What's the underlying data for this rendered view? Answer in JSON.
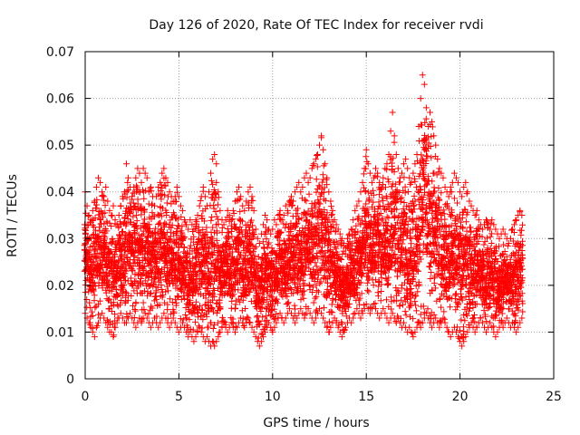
{
  "chart_data": {
    "type": "scatter",
    "title": "Day 126 of 2020, Rate Of TEC Index for receiver rvdi",
    "xlabel": "GPS time / hours",
    "ylabel": "ROTI / TECUs",
    "xlim": [
      0,
      25
    ],
    "ylim": [
      0,
      0.07
    ],
    "xticks": [
      0,
      5,
      10,
      15,
      20,
      25
    ],
    "xtick_labels": [
      "0",
      "5",
      "10",
      "15",
      "20",
      "25"
    ],
    "yticks": [
      0,
      0.01,
      0.02,
      0.03,
      0.04,
      0.05,
      0.06,
      0.07
    ],
    "ytick_labels": [
      "0",
      "0.01",
      "0.02",
      "0.03",
      "0.04",
      "0.05",
      "0.06",
      "0.07"
    ],
    "grid": true,
    "marker": "+",
    "series": [
      {
        "name": "ROTI",
        "color": "#ff0000",
        "x": [
          0.0,
          0.1,
          0.2,
          0.3,
          0.4,
          0.5,
          0.6,
          0.7,
          0.8,
          0.9,
          1.0,
          1.1,
          1.2,
          1.3,
          1.4,
          1.5,
          1.6,
          1.7,
          1.8,
          1.9,
          2.0,
          2.1,
          2.2,
          2.3,
          2.4,
          2.5,
          2.6,
          2.7,
          2.8,
          2.9,
          3.0,
          3.1,
          3.2,
          3.3,
          3.4,
          3.5,
          3.6,
          3.7,
          3.8,
          3.9,
          4.0,
          4.1,
          4.2,
          4.3,
          4.4,
          4.5,
          4.6,
          4.7,
          4.8,
          4.9,
          5.0,
          5.1,
          5.2,
          5.3,
          5.4,
          5.5,
          5.6,
          5.7,
          5.8,
          5.9,
          6.0,
          6.1,
          6.2,
          6.3,
          6.4,
          6.5,
          6.6,
          6.7,
          6.8,
          6.9,
          7.0,
          7.1,
          7.2,
          7.3,
          7.4,
          7.5,
          7.6,
          7.7,
          7.8,
          7.9,
          8.0,
          8.1,
          8.2,
          8.3,
          8.4,
          8.5,
          8.6,
          8.7,
          8.8,
          8.9,
          9.0,
          9.1,
          9.2,
          9.3,
          9.4,
          9.5,
          9.6,
          9.7,
          9.8,
          9.9,
          10.0,
          10.1,
          10.2,
          10.3,
          10.4,
          10.5,
          10.6,
          10.7,
          10.8,
          10.9,
          11.0,
          11.1,
          11.2,
          11.3,
          11.4,
          11.5,
          11.6,
          11.7,
          11.8,
          11.9,
          12.0,
          12.1,
          12.2,
          12.3,
          12.4,
          12.5,
          12.6,
          12.7,
          12.8,
          12.9,
          13.0,
          13.1,
          13.2,
          13.3,
          13.4,
          13.5,
          13.6,
          13.7,
          13.8,
          13.9,
          14.0,
          14.1,
          14.2,
          14.3,
          14.4,
          14.5,
          14.6,
          14.7,
          14.8,
          14.9,
          15.0,
          15.1,
          15.2,
          15.3,
          15.4,
          15.5,
          15.6,
          15.7,
          15.8,
          15.9,
          16.0,
          16.1,
          16.2,
          16.3,
          16.4,
          16.5,
          16.6,
          16.7,
          16.8,
          16.9,
          17.0,
          17.1,
          17.2,
          17.3,
          17.4,
          17.5,
          17.6,
          17.7,
          17.8,
          17.9,
          18.0,
          18.1,
          18.2,
          18.3,
          18.4,
          18.5,
          18.6,
          18.7,
          18.8,
          18.9,
          19.0,
          19.1,
          19.2,
          19.3,
          19.4,
          19.5,
          19.6,
          19.7,
          19.8,
          19.9,
          20.0,
          20.1,
          20.2,
          20.3,
          20.4,
          20.5,
          20.6,
          20.7,
          20.8,
          20.9,
          21.0,
          21.1,
          21.2,
          21.3,
          21.4,
          21.5,
          21.6,
          21.7,
          21.8,
          21.9,
          22.0,
          22.1,
          22.2,
          22.3,
          22.4,
          22.5,
          22.6,
          22.7,
          22.8,
          22.9,
          23.0,
          23.1,
          23.2,
          23.3,
          23.4,
          23.5,
          23.6,
          23.7,
          23.8,
          23.9,
          24.0
        ],
        "y_min": [
          0.014,
          0.013,
          0.012,
          0.011,
          0.01,
          0.009,
          0.011,
          0.012,
          0.013,
          0.014,
          0.013,
          0.012,
          0.011,
          0.01,
          0.01,
          0.009,
          0.011,
          0.012,
          0.013,
          0.014,
          0.013,
          0.012,
          0.012,
          0.013,
          0.014,
          0.013,
          0.012,
          0.011,
          0.012,
          0.013,
          0.012,
          0.013,
          0.014,
          0.013,
          0.012,
          0.011,
          0.012,
          0.013,
          0.012,
          0.011,
          0.012,
          0.013,
          0.014,
          0.013,
          0.012,
          0.011,
          0.012,
          0.013,
          0.012,
          0.011,
          0.01,
          0.011,
          0.012,
          0.011,
          0.01,
          0.009,
          0.01,
          0.009,
          0.008,
          0.009,
          0.01,
          0.011,
          0.01,
          0.009,
          0.008,
          0.009,
          0.008,
          0.007,
          0.008,
          0.007,
          0.008,
          0.009,
          0.01,
          0.011,
          0.012,
          0.011,
          0.01,
          0.011,
          0.012,
          0.011,
          0.01,
          0.011,
          0.012,
          0.013,
          0.012,
          0.011,
          0.012,
          0.013,
          0.012,
          0.011,
          0.01,
          0.009,
          0.008,
          0.007,
          0.008,
          0.009,
          0.01,
          0.011,
          0.012,
          0.011,
          0.01,
          0.011,
          0.012,
          0.013,
          0.014,
          0.013,
          0.012,
          0.013,
          0.014,
          0.015,
          0.014,
          0.013,
          0.012,
          0.013,
          0.014,
          0.015,
          0.014,
          0.013,
          0.014,
          0.015,
          0.014,
          0.013,
          0.012,
          0.013,
          0.014,
          0.015,
          0.014,
          0.013,
          0.012,
          0.011,
          0.01,
          0.011,
          0.012,
          0.013,
          0.012,
          0.011,
          0.01,
          0.009,
          0.01,
          0.011,
          0.012,
          0.013,
          0.012,
          0.013,
          0.014,
          0.015,
          0.014,
          0.013,
          0.014,
          0.015,
          0.016,
          0.015,
          0.014,
          0.015,
          0.016,
          0.015,
          0.014,
          0.013,
          0.014,
          0.015,
          0.014,
          0.013,
          0.012,
          0.013,
          0.014,
          0.013,
          0.012,
          0.013,
          0.012,
          0.011,
          0.012,
          0.011,
          0.01,
          0.011,
          0.01,
          0.009,
          0.01,
          0.011,
          0.012,
          0.011,
          0.012,
          0.013,
          0.014,
          0.013,
          0.012,
          0.011,
          0.012,
          0.013,
          0.012,
          0.011,
          0.012,
          0.013,
          0.012,
          0.011,
          0.01,
          0.009,
          0.01,
          0.011,
          0.01,
          0.009,
          0.008,
          0.007,
          0.008,
          0.009,
          0.01,
          0.011,
          0.012,
          0.011,
          0.01,
          0.011,
          0.012,
          0.013,
          0.012,
          0.011,
          0.01,
          0.011,
          0.012,
          0.011,
          0.01,
          0.009,
          0.01,
          0.011,
          0.012,
          0.011,
          0.012,
          0.013,
          0.012,
          0.011,
          0.012,
          0.011,
          0.01,
          0.011,
          0.012,
          0.013
        ],
        "y_max": [
          0.04,
          0.037,
          0.035,
          0.034,
          0.036,
          0.038,
          0.041,
          0.043,
          0.042,
          0.04,
          0.039,
          0.041,
          0.038,
          0.036,
          0.035,
          0.037,
          0.034,
          0.033,
          0.035,
          0.037,
          0.039,
          0.04,
          0.046,
          0.043,
          0.041,
          0.039,
          0.041,
          0.043,
          0.045,
          0.044,
          0.042,
          0.045,
          0.044,
          0.043,
          0.04,
          0.041,
          0.039,
          0.037,
          0.039,
          0.041,
          0.042,
          0.044,
          0.045,
          0.043,
          0.042,
          0.04,
          0.039,
          0.038,
          0.039,
          0.041,
          0.039,
          0.037,
          0.036,
          0.034,
          0.033,
          0.032,
          0.034,
          0.033,
          0.032,
          0.034,
          0.035,
          0.037,
          0.039,
          0.041,
          0.039,
          0.037,
          0.04,
          0.044,
          0.047,
          0.048,
          0.046,
          0.04,
          0.036,
          0.034,
          0.033,
          0.034,
          0.036,
          0.035,
          0.034,
          0.036,
          0.038,
          0.04,
          0.041,
          0.039,
          0.037,
          0.036,
          0.038,
          0.04,
          0.041,
          0.039,
          0.036,
          0.032,
          0.03,
          0.029,
          0.031,
          0.033,
          0.035,
          0.034,
          0.032,
          0.031,
          0.032,
          0.034,
          0.033,
          0.035,
          0.036,
          0.034,
          0.035,
          0.037,
          0.036,
          0.038,
          0.039,
          0.038,
          0.04,
          0.041,
          0.042,
          0.04,
          0.041,
          0.043,
          0.044,
          0.042,
          0.043,
          0.045,
          0.046,
          0.047,
          0.048,
          0.05,
          0.052,
          0.049,
          0.046,
          0.043,
          0.04,
          0.038,
          0.036,
          0.034,
          0.033,
          0.032,
          0.031,
          0.03,
          0.029,
          0.028,
          0.03,
          0.031,
          0.032,
          0.034,
          0.036,
          0.037,
          0.038,
          0.04,
          0.042,
          0.045,
          0.049,
          0.046,
          0.044,
          0.042,
          0.043,
          0.045,
          0.044,
          0.042,
          0.041,
          0.043,
          0.045,
          0.046,
          0.048,
          0.053,
          0.057,
          0.052,
          0.048,
          0.045,
          0.043,
          0.044,
          0.046,
          0.047,
          0.045,
          0.043,
          0.042,
          0.044,
          0.046,
          0.048,
          0.054,
          0.06,
          0.065,
          0.063,
          0.058,
          0.054,
          0.057,
          0.055,
          0.052,
          0.05,
          0.047,
          0.045,
          0.044,
          0.043,
          0.041,
          0.04,
          0.039,
          0.041,
          0.042,
          0.044,
          0.043,
          0.042,
          0.04,
          0.039,
          0.041,
          0.042,
          0.04,
          0.038,
          0.037,
          0.036,
          0.035,
          0.036,
          0.034,
          0.033,
          0.032,
          0.033,
          0.034,
          0.033,
          0.032,
          0.034,
          0.033,
          0.032,
          0.031,
          0.03,
          0.031,
          0.032,
          0.031,
          0.03,
          0.029,
          0.03,
          0.032,
          0.033,
          0.034,
          0.035,
          0.036,
          0.035
        ]
      }
    ]
  }
}
